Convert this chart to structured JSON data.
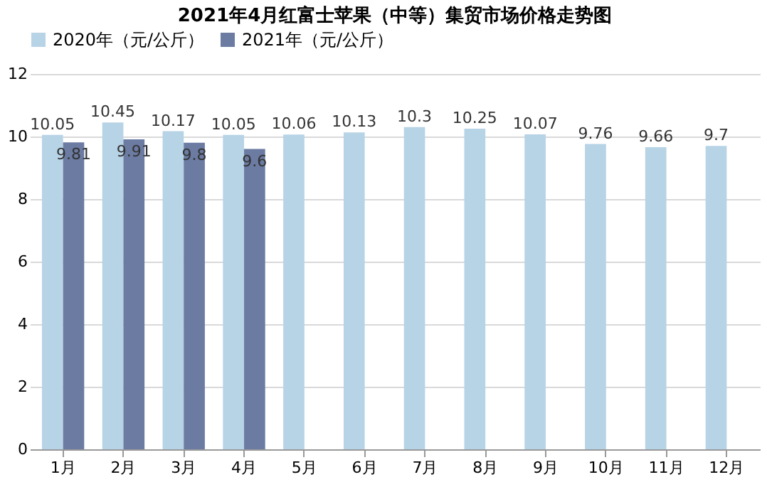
{
  "chart_data": {
    "type": "bar",
    "title": "2021年4月红富士苹果（中等）集贸市场价格走势图",
    "categories": [
      "1月",
      "2月",
      "3月",
      "4月",
      "5月",
      "6月",
      "7月",
      "8月",
      "9月",
      "10月",
      "11月",
      "12月"
    ],
    "series": [
      {
        "name": "2020年（元/公斤）",
        "color": "#b7d3e6",
        "values": [
          10.05,
          10.45,
          10.17,
          10.05,
          10.06,
          10.13,
          10.3,
          10.25,
          10.07,
          9.76,
          9.66,
          9.7
        ]
      },
      {
        "name": "2021年（元/公斤）",
        "color": "#6b7ba2",
        "values": [
          9.81,
          9.91,
          9.8,
          9.6,
          null,
          null,
          null,
          null,
          null,
          null,
          null,
          null
        ]
      }
    ],
    "ylim": [
      0,
      12
    ],
    "yticks": [
      0,
      2,
      4,
      6,
      8,
      10,
      12
    ],
    "grid": "y",
    "legend": "top",
    "data_labels": true
  }
}
